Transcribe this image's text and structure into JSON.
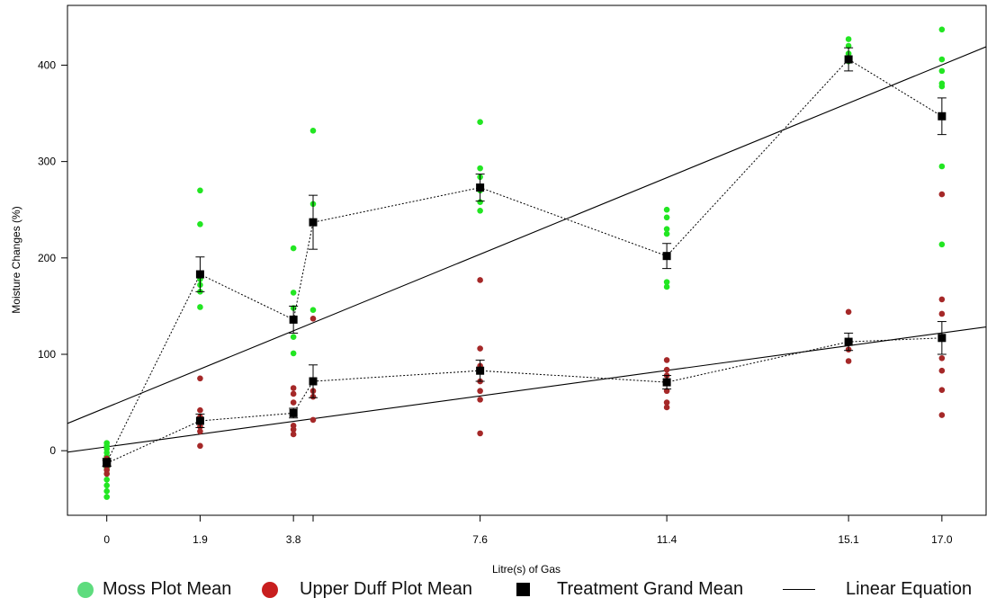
{
  "chart_data": {
    "type": "scatter",
    "xlabel": "Litre(s) of Gas",
    "ylabel": "Moisture Changes (%)",
    "x_ticks": [
      "0",
      "1.9",
      "3.8",
      "7.6",
      "11.4",
      "15.1",
      "17.0"
    ],
    "y_ticks": [
      "0",
      "100",
      "200",
      "300",
      "400"
    ],
    "xlim": [
      -0.8,
      17.9
    ],
    "ylim": [
      -67,
      462
    ],
    "colors": {
      "moss": "#22e622",
      "duff": "#a52828",
      "mean": "#000000",
      "legend_moss": "#5edc7e",
      "legend_duff": "#c81e1e"
    },
    "series": [
      {
        "name": "Moss Plot Mean",
        "points": [
          {
            "x": 0,
            "y": 8
          },
          {
            "x": 0,
            "y": 5
          },
          {
            "x": 0,
            "y": 2
          },
          {
            "x": 0,
            "y": -2
          },
          {
            "x": 0,
            "y": -6
          },
          {
            "x": 0,
            "y": -12
          },
          {
            "x": 0,
            "y": -18
          },
          {
            "x": 0,
            "y": -24
          },
          {
            "x": 0,
            "y": -30
          },
          {
            "x": 0,
            "y": -36
          },
          {
            "x": 0,
            "y": -42
          },
          {
            "x": 0,
            "y": -48
          },
          {
            "x": 1.9,
            "y": 270
          },
          {
            "x": 1.9,
            "y": 235
          },
          {
            "x": 1.9,
            "y": 178
          },
          {
            "x": 1.9,
            "y": 172
          },
          {
            "x": 1.9,
            "y": 165
          },
          {
            "x": 1.9,
            "y": 149
          },
          {
            "x": 3.8,
            "y": 210
          },
          {
            "x": 3.8,
            "y": 164
          },
          {
            "x": 3.8,
            "y": 148
          },
          {
            "x": 3.8,
            "y": 118
          },
          {
            "x": 3.8,
            "y": 101
          },
          {
            "x": 4.2,
            "y": 332
          },
          {
            "x": 4.2,
            "y": 256
          },
          {
            "x": 4.2,
            "y": 146
          },
          {
            "x": 7.6,
            "y": 341
          },
          {
            "x": 7.6,
            "y": 293
          },
          {
            "x": 7.6,
            "y": 284
          },
          {
            "x": 7.6,
            "y": 270
          },
          {
            "x": 7.6,
            "y": 258
          },
          {
            "x": 7.6,
            "y": 249
          },
          {
            "x": 11.4,
            "y": 250
          },
          {
            "x": 11.4,
            "y": 242
          },
          {
            "x": 11.4,
            "y": 230
          },
          {
            "x": 11.4,
            "y": 225
          },
          {
            "x": 11.4,
            "y": 175
          },
          {
            "x": 11.4,
            "y": 170
          },
          {
            "x": 15.1,
            "y": 427
          },
          {
            "x": 15.1,
            "y": 420
          },
          {
            "x": 15.1,
            "y": 412
          },
          {
            "x": 15.1,
            "y": 404
          },
          {
            "x": 17.0,
            "y": 437
          },
          {
            "x": 17.0,
            "y": 406
          },
          {
            "x": 17.0,
            "y": 394
          },
          {
            "x": 17.0,
            "y": 381
          },
          {
            "x": 17.0,
            "y": 378
          },
          {
            "x": 17.0,
            "y": 295
          },
          {
            "x": 17.0,
            "y": 214
          }
        ]
      },
      {
        "name": "Upper Duff Plot Mean",
        "points": [
          {
            "x": 0,
            "y": -8
          },
          {
            "x": 0,
            "y": -12
          },
          {
            "x": 0,
            "y": -16
          },
          {
            "x": 0,
            "y": -20
          },
          {
            "x": 0,
            "y": -24
          },
          {
            "x": 1.9,
            "y": 75
          },
          {
            "x": 1.9,
            "y": 42
          },
          {
            "x": 1.9,
            "y": 35
          },
          {
            "x": 1.9,
            "y": 25
          },
          {
            "x": 1.9,
            "y": 20
          },
          {
            "x": 1.9,
            "y": 5
          },
          {
            "x": 3.8,
            "y": 65
          },
          {
            "x": 3.8,
            "y": 59
          },
          {
            "x": 3.8,
            "y": 50
          },
          {
            "x": 3.8,
            "y": 38
          },
          {
            "x": 3.8,
            "y": 26
          },
          {
            "x": 3.8,
            "y": 22
          },
          {
            "x": 3.8,
            "y": 17
          },
          {
            "x": 4.2,
            "y": 137
          },
          {
            "x": 4.2,
            "y": 62
          },
          {
            "x": 4.2,
            "y": 56
          },
          {
            "x": 4.2,
            "y": 32
          },
          {
            "x": 7.6,
            "y": 177
          },
          {
            "x": 7.6,
            "y": 106
          },
          {
            "x": 7.6,
            "y": 88
          },
          {
            "x": 7.6,
            "y": 72
          },
          {
            "x": 7.6,
            "y": 62
          },
          {
            "x": 7.6,
            "y": 53
          },
          {
            "x": 7.6,
            "y": 18
          },
          {
            "x": 11.4,
            "y": 94
          },
          {
            "x": 11.4,
            "y": 84
          },
          {
            "x": 11.4,
            "y": 78
          },
          {
            "x": 11.4,
            "y": 62
          },
          {
            "x": 11.4,
            "y": 50
          },
          {
            "x": 11.4,
            "y": 45
          },
          {
            "x": 15.1,
            "y": 144
          },
          {
            "x": 15.1,
            "y": 112
          },
          {
            "x": 15.1,
            "y": 105
          },
          {
            "x": 15.1,
            "y": 93
          },
          {
            "x": 17.0,
            "y": 266
          },
          {
            "x": 17.0,
            "y": 157
          },
          {
            "x": 17.0,
            "y": 142
          },
          {
            "x": 17.0,
            "y": 96
          },
          {
            "x": 17.0,
            "y": 83
          },
          {
            "x": 17.0,
            "y": 63
          },
          {
            "x": 17.0,
            "y": 37
          }
        ]
      }
    ],
    "grand_means": {
      "name": "Treatment Grand Mean",
      "groups": [
        {
          "label": "Moss Plot Mean",
          "points": [
            {
              "x": 0,
              "y": -12,
              "err": 4
            },
            {
              "x": 1.9,
              "y": 183,
              "err": 18
            },
            {
              "x": 3.8,
              "y": 136,
              "err": 14
            },
            {
              "x": 4.2,
              "y": 237,
              "err": 28
            },
            {
              "x": 7.6,
              "y": 273,
              "err": 14
            },
            {
              "x": 11.4,
              "y": 202,
              "err": 13
            },
            {
              "x": 15.1,
              "y": 406,
              "err": 12
            },
            {
              "x": 17.0,
              "y": 347,
              "err": 19
            }
          ]
        },
        {
          "label": "Upper Duff Plot Mean",
          "points": [
            {
              "x": 0,
              "y": -13,
              "err": 3
            },
            {
              "x": 1.9,
              "y": 31,
              "err": 7
            },
            {
              "x": 3.8,
              "y": 39,
              "err": 5
            },
            {
              "x": 4.2,
              "y": 72,
              "err": 17
            },
            {
              "x": 7.6,
              "y": 83,
              "err": 11
            },
            {
              "x": 11.4,
              "y": 71,
              "err": 7
            },
            {
              "x": 15.1,
              "y": 113,
              "err": 9
            },
            {
              "x": 17.0,
              "y": 117,
              "err": 17
            }
          ]
        }
      ]
    },
    "linear_equations": [
      {
        "intercept": 45,
        "slope": 20.9
      },
      {
        "intercept": 4,
        "slope": 6.95
      }
    ],
    "legend": {
      "placement": "bottom",
      "items": [
        {
          "key": "moss",
          "label": "Moss Plot Mean"
        },
        {
          "key": "duff",
          "label": "Upper Duff Plot Mean"
        },
        {
          "key": "mean",
          "label": "Treatment Grand Mean"
        },
        {
          "key": "line",
          "label": "Linear Equation"
        }
      ]
    }
  }
}
